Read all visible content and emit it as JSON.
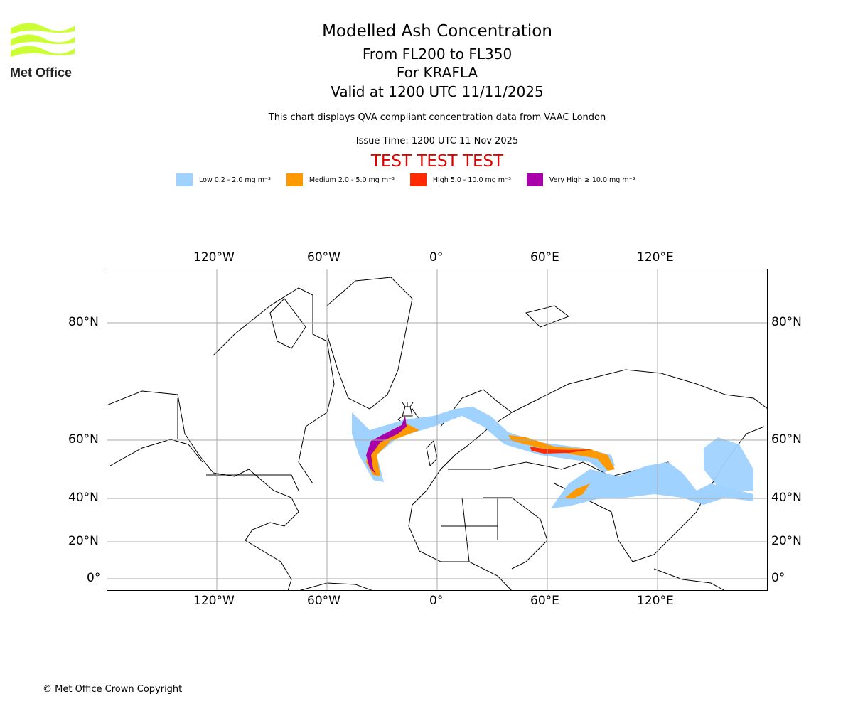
{
  "logo": {
    "text": "Met Office",
    "color": "#ccff33"
  },
  "header": {
    "title": "Modelled Ash Concentration",
    "levels": "From FL200 to FL350",
    "volcano": "For KRAFLA",
    "valid": "Valid at 1200 UTC 11/11/2025",
    "description": "This chart displays QVA compliant concentration data from VAAC London",
    "issue_time": "Issue Time: 1200 UTC 11 Nov 2025",
    "test_banner": "TEST TEST TEST"
  },
  "legend": [
    {
      "label": "Low 0.2 - 2.0 mg m⁻³",
      "color": "#a0d2ff"
    },
    {
      "label": "Medium 2.0 - 5.0 mg m⁻³",
      "color": "#ff9900"
    },
    {
      "label": "High 5.0 - 10.0 mg m⁻³",
      "color": "#ff2a00"
    },
    {
      "label": "Very High ≥ 10.0 mg m⁻³",
      "color": "#aa00aa"
    }
  ],
  "map": {
    "lon_labels": [
      "120°W",
      "60°W",
      "0°",
      "60°E",
      "120°E"
    ],
    "lat_labels": [
      "80°N",
      "60°N",
      "40°N",
      "20°N",
      "0°"
    ]
  },
  "footer": {
    "copyright": "© Met Office Crown Copyright"
  }
}
